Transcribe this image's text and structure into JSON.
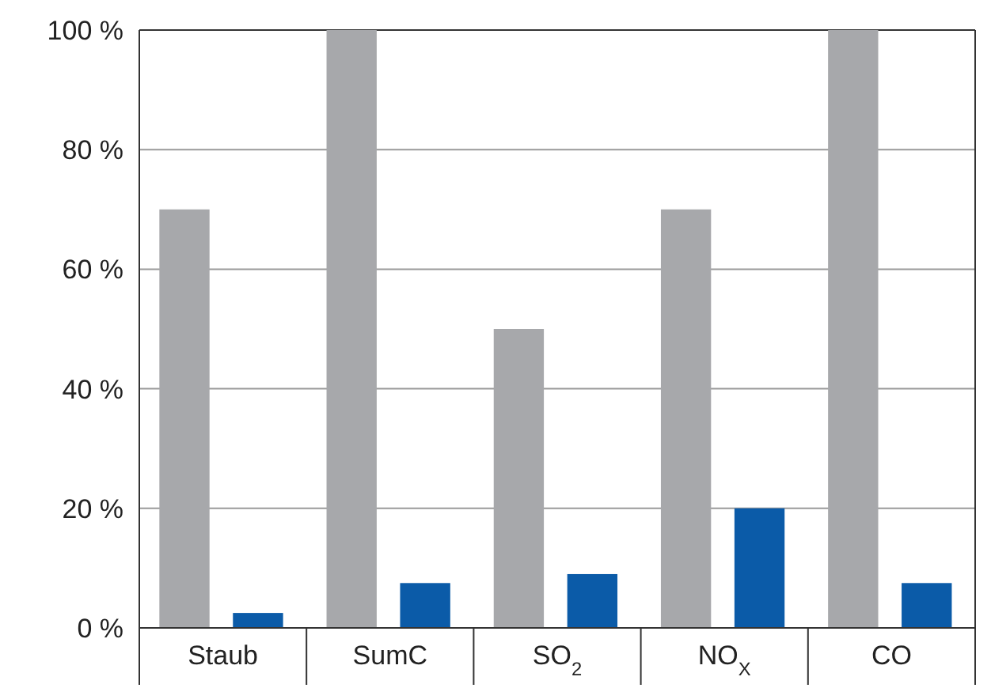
{
  "chart_data": {
    "type": "bar",
    "categories": [
      "Staub",
      "SumC",
      "SO$_{2}$",
      "NO$_{X}$",
      "CO"
    ],
    "series": [
      {
        "color": "#a7a8ab",
        "values": [
          70,
          100,
          50,
          70,
          100
        ]
      },
      {
        "color": "#0b5ba8",
        "values": [
          2.5,
          7.5,
          9,
          20,
          7.5
        ]
      }
    ],
    "ylim": [
      0,
      100
    ],
    "yticks": [
      {
        "value": 0,
        "label": "0 %"
      },
      {
        "value": 20,
        "label": "20 %"
      },
      {
        "value": 40,
        "label": "40 %"
      },
      {
        "value": 60,
        "label": "60 %"
      },
      {
        "value": 80,
        "label": "80 %"
      },
      {
        "value": 100,
        "label": "100 %"
      }
    ],
    "grid": "y"
  }
}
